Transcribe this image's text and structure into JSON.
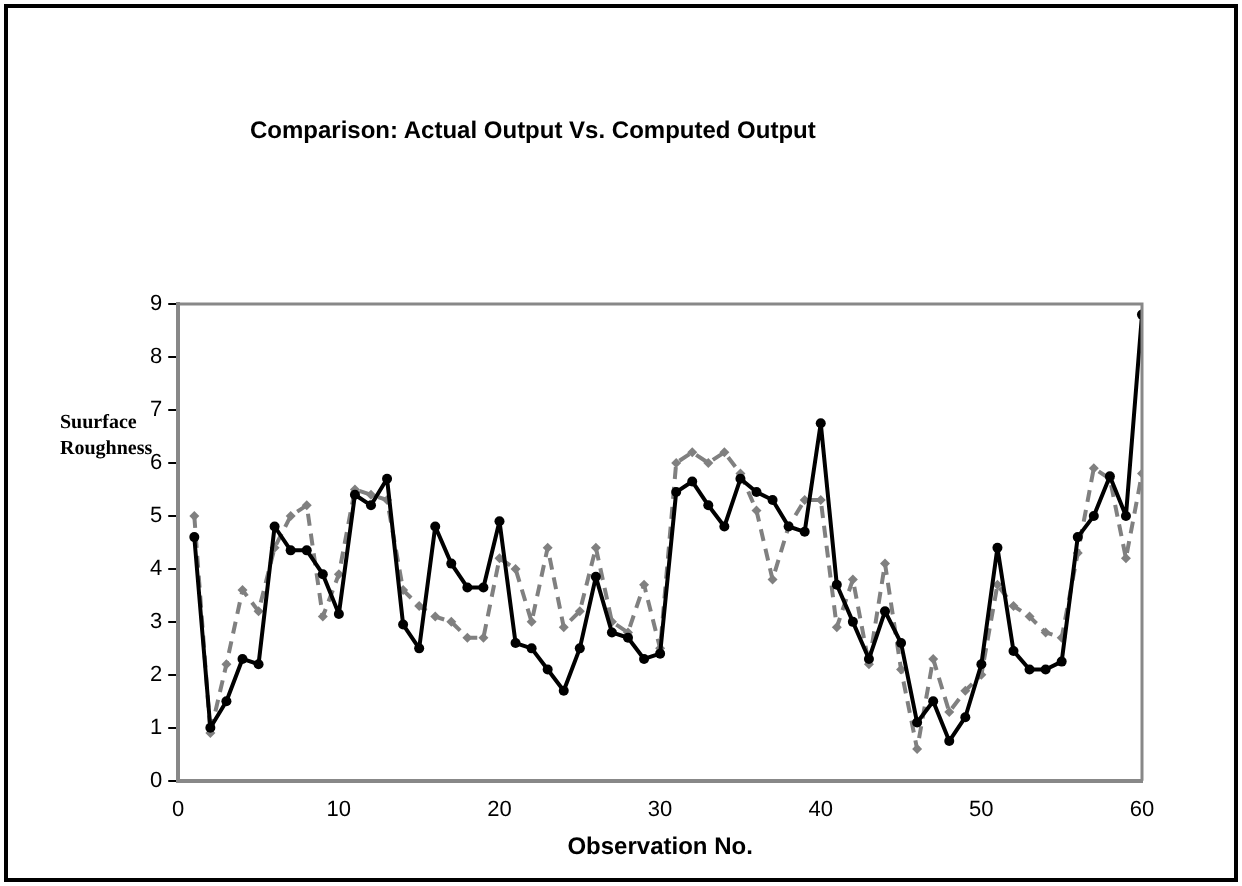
{
  "chart_data": {
    "type": "line",
    "title": "Comparison: Actual Output  Vs. Computed Output",
    "xlabel": "Observation No.",
    "ylabel": "Suurface Roughness",
    "x": [
      1,
      2,
      3,
      4,
      5,
      6,
      7,
      8,
      9,
      10,
      11,
      12,
      13,
      14,
      15,
      16,
      17,
      18,
      19,
      20,
      21,
      22,
      23,
      24,
      25,
      26,
      27,
      28,
      29,
      30,
      31,
      32,
      33,
      34,
      35,
      36,
      37,
      38,
      39,
      40,
      41,
      42,
      43,
      44,
      45,
      46,
      47,
      48,
      49,
      50,
      51,
      52,
      53,
      54,
      55,
      56,
      57,
      58,
      59,
      60
    ],
    "series": [
      {
        "color": "#000000",
        "line_style": "solid",
        "marker": "circle",
        "values": [
          4.6,
          1.0,
          1.5,
          2.3,
          2.2,
          4.8,
          4.35,
          4.35,
          3.9,
          3.15,
          5.4,
          5.2,
          5.7,
          2.95,
          2.5,
          4.8,
          4.1,
          3.65,
          3.65,
          4.9,
          2.6,
          2.5,
          2.1,
          1.7,
          2.5,
          3.85,
          2.8,
          2.7,
          2.3,
          2.4,
          5.45,
          5.65,
          5.2,
          4.8,
          5.7,
          5.45,
          5.3,
          4.8,
          4.7,
          6.75,
          3.7,
          3.0,
          2.3,
          3.2,
          2.6,
          1.1,
          1.5,
          0.75,
          1.2,
          2.2,
          4.4,
          2.45,
          2.1,
          2.1,
          2.25,
          4.6,
          5.0,
          5.75,
          5.0,
          8.8
        ]
      },
      {
        "color": "#808080",
        "line_style": "dashed",
        "marker": "diamond",
        "values": [
          5.0,
          0.9,
          2.2,
          3.6,
          3.2,
          4.4,
          5.0,
          5.2,
          3.1,
          3.9,
          5.5,
          5.4,
          5.3,
          3.6,
          3.3,
          3.1,
          3.0,
          2.7,
          2.7,
          4.2,
          4.0,
          3.0,
          4.4,
          2.9,
          3.2,
          4.4,
          3.0,
          2.8,
          3.7,
          2.5,
          6.0,
          6.2,
          6.0,
          6.2,
          5.8,
          5.1,
          3.8,
          4.8,
          5.3,
          5.3,
          2.9,
          3.8,
          2.2,
          4.1,
          2.1,
          0.6,
          2.3,
          1.3,
          1.7,
          2.0,
          3.7,
          3.3,
          3.1,
          2.8,
          2.7,
          4.3,
          5.9,
          5.7,
          4.2,
          5.8
        ]
      }
    ],
    "xlim": [
      0,
      60
    ],
    "xticks": [
      0,
      10,
      20,
      30,
      40,
      50,
      60
    ],
    "ylim": [
      0,
      9
    ],
    "yticks": [
      0,
      1,
      2,
      3,
      4,
      5,
      6,
      7,
      8,
      9
    ],
    "grid": false,
    "legend": false
  }
}
